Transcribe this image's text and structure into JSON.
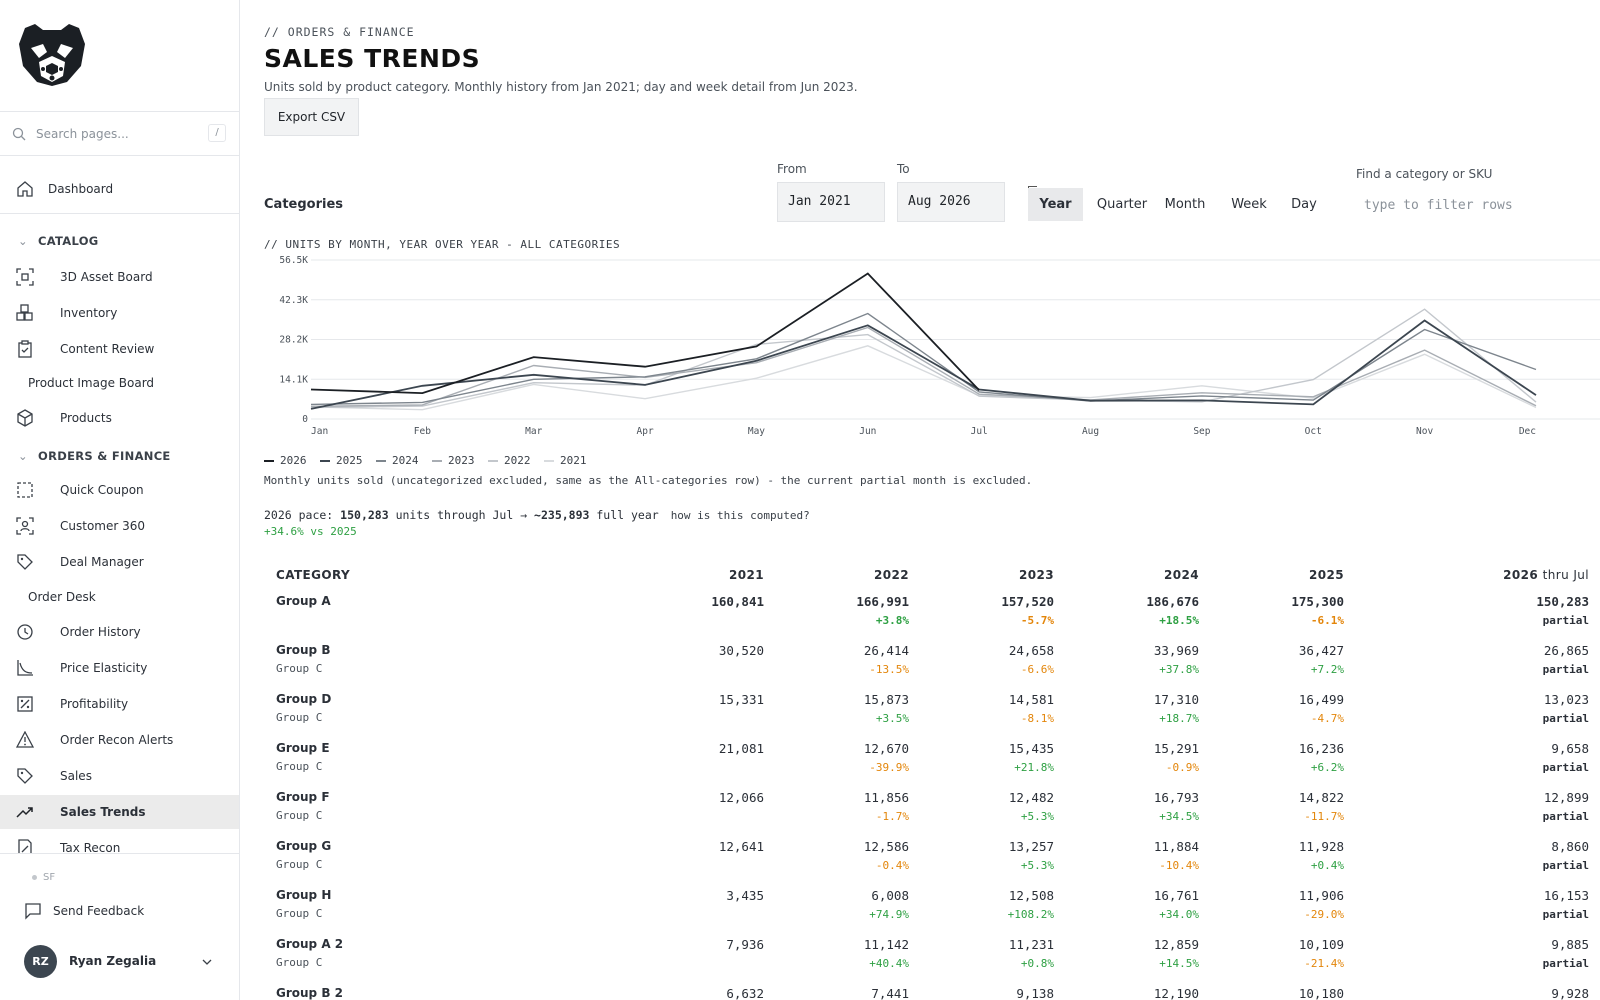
{
  "sidebar": {
    "search_placeholder": "Search pages...",
    "search_shortcut": "/",
    "dashboard": "Dashboard",
    "sections": {
      "catalog": "CATALOG",
      "orders": "ORDERS & FINANCE"
    },
    "catalog_items": {
      "asset_board": "3D Asset Board",
      "inventory": "Inventory",
      "content_review": "Content Review",
      "image_board": "Product Image Board",
      "products": "Products"
    },
    "orders_items": {
      "quick_coupon": "Quick Coupon",
      "customer_360": "Customer 360",
      "deal_manager": "Deal Manager",
      "order_desk": "Order Desk",
      "order_history": "Order History",
      "price_elasticity": "Price Elasticity",
      "profitability": "Profitability",
      "order_recon": "Order Recon Alerts",
      "sales": "Sales",
      "sales_trends": "Sales Trends",
      "tax_recon": "Tax Recon"
    },
    "sf": "SF",
    "feedback": "Send Feedback",
    "user": {
      "initials": "RZ",
      "name": "Ryan Zegalia"
    }
  },
  "header": {
    "breadcrumb": "// ORDERS & FINANCE",
    "title": "SALES TRENDS",
    "subtitle": "Units sold by product category. Monthly history from Jan 2021; day and week detail from Jun 2023.",
    "export_label": "Export CSV"
  },
  "filters": {
    "categories_label": "Categories",
    "from_label": "From",
    "from_value": "Jan 2021",
    "to_label": "To",
    "to_value": "Aug 2026",
    "granularity": [
      "Year",
      "Quarter",
      "Month",
      "Week",
      "Day"
    ],
    "active_granularity": "Year",
    "find_label": "Find a category or SKU",
    "find_placeholder": "type to filter rows"
  },
  "chart_data": {
    "type": "line",
    "title": "// UNITS BY MONTH, YEAR OVER YEAR - ALL CATEGORIES",
    "categories": [
      "Jan",
      "Feb",
      "Mar",
      "Apr",
      "May",
      "Jun",
      "Jul",
      "Aug",
      "Sep",
      "Oct",
      "Nov",
      "Dec"
    ],
    "y_ticks": [
      "0",
      "14.1K",
      "28.2K",
      "42.3K",
      "56.5K"
    ],
    "ylim": [
      0,
      56500
    ],
    "grid": true,
    "legend_placement": "bottom-left",
    "series": [
      {
        "name": "2026",
        "color": "#1b1f24",
        "values": [
          10500,
          9200,
          22000,
          18600,
          25800,
          51700,
          10200,
          null,
          null,
          null,
          null,
          null
        ]
      },
      {
        "name": "2025",
        "color": "#3c4650",
        "values": [
          3600,
          11800,
          15700,
          12100,
          20700,
          33300,
          10500,
          6500,
          6600,
          5200,
          35000,
          8500
        ]
      },
      {
        "name": "2024",
        "color": "#7d858d",
        "values": [
          5200,
          5900,
          14100,
          15000,
          21400,
          37500,
          9600,
          6400,
          8200,
          6700,
          31800,
          17600
        ]
      },
      {
        "name": "2023",
        "color": "#a8adb3",
        "values": [
          4500,
          5000,
          19000,
          14800,
          20000,
          32500,
          8800,
          6800,
          9300,
          7900,
          24500,
          4700
        ]
      },
      {
        "name": "2022",
        "color": "#c3c7cc",
        "values": [
          4100,
          4600,
          12900,
          12000,
          26500,
          30000,
          8100,
          6700,
          6100,
          14000,
          39000,
          6000
        ]
      },
      {
        "name": "2021",
        "color": "#d8dbde",
        "values": [
          4300,
          3300,
          12300,
          7200,
          14500,
          26000,
          8300,
          7600,
          11800,
          7400,
          23000,
          4100
        ]
      }
    ]
  },
  "chart_note": "Monthly units sold (uncategorized excluded, same as the All-categories row) - the current partial month is excluded.",
  "pace": {
    "prefix": "2026 pace: ",
    "units": "150,283",
    "mid": " units through Jul → ",
    "full": "~235,893",
    "suffix": " full year",
    "link": "how is this computed?",
    "delta": "+34.6% vs 2025"
  },
  "table": {
    "headers": {
      "category": "CATEGORY",
      "y2021": "2021",
      "y2022": "2022",
      "y2023": "2023",
      "y2024": "2024",
      "y2025": "2025",
      "y2026": "2026",
      "y2026_note": "thru Jul"
    },
    "rows": [
      {
        "name": "Group A",
        "sub": "",
        "values": [
          "160,841",
          "166,991",
          "157,520",
          "186,676",
          "175,300",
          "150,283"
        ],
        "deltas": [
          "",
          "+3.8%",
          "-5.7%",
          "+18.5%",
          "-6.1%",
          "partial"
        ]
      },
      {
        "name": "Group B",
        "sub": "Group C",
        "values": [
          "30,520",
          "26,414",
          "24,658",
          "33,969",
          "36,427",
          "26,865"
        ],
        "deltas": [
          "",
          "-13.5%",
          "-6.6%",
          "+37.8%",
          "+7.2%",
          "partial"
        ]
      },
      {
        "name": "Group D",
        "sub": "Group C",
        "values": [
          "15,331",
          "15,873",
          "14,581",
          "17,310",
          "16,499",
          "13,023"
        ],
        "deltas": [
          "",
          "+3.5%",
          "-8.1%",
          "+18.7%",
          "-4.7%",
          "partial"
        ]
      },
      {
        "name": "Group E",
        "sub": "Group C",
        "values": [
          "21,081",
          "12,670",
          "15,435",
          "15,291",
          "16,236",
          "9,658"
        ],
        "deltas": [
          "",
          "-39.9%",
          "+21.8%",
          "-0.9%",
          "+6.2%",
          "partial"
        ]
      },
      {
        "name": "Group F",
        "sub": "Group C",
        "values": [
          "12,066",
          "11,856",
          "12,482",
          "16,793",
          "14,822",
          "12,899"
        ],
        "deltas": [
          "",
          "-1.7%",
          "+5.3%",
          "+34.5%",
          "-11.7%",
          "partial"
        ]
      },
      {
        "name": "Group G",
        "sub": "Group C",
        "values": [
          "12,641",
          "12,586",
          "13,257",
          "11,884",
          "11,928",
          "8,860"
        ],
        "deltas": [
          "",
          "-0.4%",
          "+5.3%",
          "-10.4%",
          "+0.4%",
          "partial"
        ]
      },
      {
        "name": "Group H",
        "sub": "Group C",
        "values": [
          "3,435",
          "6,008",
          "12,508",
          "16,761",
          "11,906",
          "16,153"
        ],
        "deltas": [
          "",
          "+74.9%",
          "+108.2%",
          "+34.0%",
          "-29.0%",
          "partial"
        ]
      },
      {
        "name": "Group A 2",
        "sub": "Group C",
        "values": [
          "7,936",
          "11,142",
          "11,231",
          "12,859",
          "10,109",
          "9,885"
        ],
        "deltas": [
          "",
          "+40.4%",
          "+0.8%",
          "+14.5%",
          "-21.4%",
          "partial"
        ]
      },
      {
        "name": "Group B 2",
        "sub": "",
        "values": [
          "6,632",
          "7,441",
          "9,138",
          "12,190",
          "10,180",
          "9,928"
        ],
        "deltas": [
          "",
          "",
          "",
          "",
          "",
          ""
        ]
      }
    ]
  },
  "colors": {
    "positive": "#2ea043",
    "negative": "#e3860b",
    "active_nav": "#ebebeb"
  }
}
